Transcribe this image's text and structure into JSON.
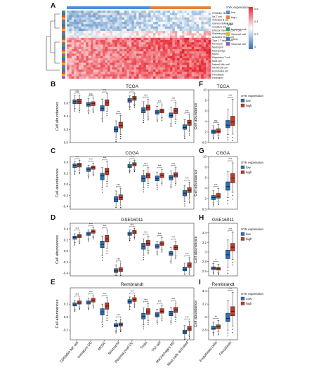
{
  "figure": {
    "panel_letters": [
      "A",
      "B",
      "C",
      "D",
      "E",
      "F",
      "G",
      "H",
      "I"
    ]
  },
  "heatmap": {
    "legend_titles": [
      "SYK expression",
      "Type"
    ],
    "expression_levels": [
      "low",
      "high"
    ],
    "type_levels": [
      "Immune cell",
      "Stromal cell",
      "Other",
      "Stromal cell"
    ],
    "colorbar_ticks": [
      "0.6",
      "0.4",
      "0.2",
      "0"
    ],
    "colors": {
      "low": "#2e6fb3",
      "high": "#c0392b",
      "cold": "#cfe2f3",
      "hot": "#e8242f",
      "white": "#ffffff"
    },
    "row_labels": [
      "CD56dim NK cell",
      "NK T cell",
      "Activated B cell",
      "Gamma delta T cell",
      "Immature DC",
      "Effector memory CD4 T cell",
      "Plasmacytoid DC",
      "Activated CD4 T cell",
      "Type 1 T helper cell",
      "Monocyte",
      "Neutrophil",
      "Macrophage",
      "MDSC",
      "Regulatory T cell",
      "Mast cell",
      "Natural killer cell",
      "Memory B cell",
      "Endothelial cell",
      "Fibroblasts",
      "Eosinophil"
    ]
  },
  "chart_data": [
    {
      "panel": "B",
      "type": "box",
      "title": "TCGA",
      "xlabel": "",
      "ylabel": "Cell abundances",
      "ylim": [
        0.0,
        0.8
      ],
      "yticks": [
        0.0,
        0.2,
        0.4,
        0.6
      ],
      "categories": [
        "CD56dim NK cell",
        "Immature DC",
        "MDSC",
        "Neutrophil",
        "Plasmacytoid DC",
        "Tregs",
        "Th2 cell",
        "Macrophages M2",
        "Mast cells activated"
      ],
      "significance": [
        "ns",
        "ns",
        "***",
        "***",
        "***",
        "***",
        "***",
        "***",
        "***"
      ],
      "series": [
        {
          "name": "low",
          "q1": [
            0.59,
            0.55,
            0.48,
            0.16,
            0.61,
            0.45,
            0.43,
            0.38,
            0.2
          ],
          "median": [
            0.62,
            0.58,
            0.52,
            0.2,
            0.64,
            0.49,
            0.46,
            0.41,
            0.23
          ],
          "q3": [
            0.65,
            0.61,
            0.56,
            0.24,
            0.67,
            0.53,
            0.49,
            0.45,
            0.27
          ],
          "min": [
            0.52,
            0.48,
            0.37,
            0.07,
            0.55,
            0.36,
            0.36,
            0.29,
            0.11
          ],
          "max": [
            0.71,
            0.67,
            0.66,
            0.33,
            0.71,
            0.62,
            0.55,
            0.54,
            0.35
          ]
        },
        {
          "name": "high",
          "q1": [
            0.59,
            0.56,
            0.56,
            0.22,
            0.64,
            0.49,
            0.45,
            0.44,
            0.26
          ],
          "median": [
            0.62,
            0.59,
            0.6,
            0.26,
            0.67,
            0.53,
            0.48,
            0.48,
            0.3
          ],
          "q3": [
            0.66,
            0.62,
            0.65,
            0.31,
            0.7,
            0.57,
            0.51,
            0.52,
            0.34
          ],
          "min": [
            0.51,
            0.5,
            0.47,
            0.12,
            0.58,
            0.4,
            0.38,
            0.35,
            0.17
          ],
          "max": [
            0.72,
            0.68,
            0.74,
            0.41,
            0.74,
            0.66,
            0.57,
            0.61,
            0.42
          ]
        }
      ]
    },
    {
      "panel": "C",
      "type": "box",
      "title": "CGGA",
      "xlabel": "",
      "ylabel": "Cell abundances",
      "ylim": [
        -0.45,
        0.5
      ],
      "yticks": [
        -0.4,
        -0.2,
        0.0,
        0.2,
        0.4
      ],
      "categories": [
        "CD56dim NK cell",
        "Immature DC",
        "MDSC",
        "Neutrophil",
        "Plasmacytoid DC",
        "Tregs",
        "Th2 cell",
        "Macrophages M2",
        "Mast cells activated"
      ],
      "significance": [
        "***",
        "***",
        "***",
        "***",
        "***",
        "***",
        "***",
        "***",
        "***"
      ],
      "series": [
        {
          "name": "low",
          "q1": [
            0.3,
            0.23,
            0.08,
            -0.32,
            0.3,
            0.05,
            0.06,
            0.08,
            -0.21
          ],
          "median": [
            0.34,
            0.27,
            0.15,
            -0.27,
            0.33,
            0.1,
            0.1,
            0.12,
            -0.16
          ],
          "q3": [
            0.37,
            0.3,
            0.2,
            -0.22,
            0.36,
            0.16,
            0.15,
            0.16,
            -0.11
          ],
          "min": [
            0.23,
            0.16,
            -0.06,
            -0.42,
            0.25,
            -0.06,
            -0.03,
            -0.01,
            -0.32
          ],
          "max": [
            0.41,
            0.34,
            0.3,
            -0.12,
            0.4,
            0.25,
            0.22,
            0.24,
            -0.02
          ]
        },
        {
          "name": "high",
          "q1": [
            0.31,
            0.27,
            0.17,
            -0.28,
            0.33,
            0.11,
            0.12,
            0.13,
            -0.15
          ],
          "median": [
            0.35,
            0.3,
            0.23,
            -0.24,
            0.36,
            0.15,
            0.16,
            0.17,
            -0.11
          ],
          "q3": [
            0.38,
            0.33,
            0.29,
            -0.19,
            0.39,
            0.2,
            0.2,
            0.21,
            -0.06
          ],
          "min": [
            0.24,
            0.2,
            0.05,
            -0.39,
            0.27,
            0.01,
            0.04,
            0.04,
            -0.27
          ],
          "max": [
            0.43,
            0.38,
            0.41,
            -0.08,
            0.43,
            0.3,
            0.27,
            0.3,
            0.04
          ]
        }
      ]
    },
    {
      "panel": "D",
      "type": "box",
      "title": "GSE16011",
      "xlabel": "",
      "ylabel": "Cell abundances",
      "ylim": [
        -0.45,
        0.5
      ],
      "yticks": [
        -0.4,
        -0.2,
        0.0,
        0.2,
        0.4
      ],
      "categories": [
        "CD56dim NK cell",
        "Immature DC",
        "MDSC",
        "Neutrophil",
        "Plasmacytoid DC",
        "Tregs",
        "Th2 cell",
        "Macrophages M2",
        "Mast cells activated"
      ],
      "significance": [
        "***",
        "***",
        "***",
        "***",
        "***",
        "***",
        "***",
        "***",
        "***"
      ],
      "series": [
        {
          "name": "low",
          "q1": [
            0.21,
            0.28,
            0.06,
            -0.39,
            0.28,
            0.03,
            0.05,
            -0.08,
            -0.36
          ],
          "median": [
            0.24,
            0.31,
            0.12,
            -0.36,
            0.31,
            0.08,
            0.08,
            -0.05,
            -0.33
          ],
          "q3": [
            0.27,
            0.34,
            0.18,
            -0.32,
            0.34,
            0.14,
            0.12,
            -0.01,
            -0.29
          ],
          "min": [
            0.15,
            0.22,
            -0.08,
            -0.44,
            0.23,
            -0.08,
            -0.02,
            -0.17,
            -0.43
          ],
          "max": [
            0.31,
            0.38,
            0.27,
            -0.25,
            0.38,
            0.22,
            0.18,
            0.06,
            -0.22
          ]
        },
        {
          "name": "high",
          "q1": [
            0.24,
            0.32,
            0.16,
            -0.37,
            0.31,
            0.1,
            0.1,
            0.02,
            -0.3
          ],
          "median": [
            0.27,
            0.35,
            0.22,
            -0.34,
            0.34,
            0.14,
            0.13,
            0.06,
            -0.26
          ],
          "q3": [
            0.3,
            0.38,
            0.28,
            -0.3,
            0.37,
            0.19,
            0.17,
            0.1,
            -0.21
          ],
          "min": [
            0.18,
            0.26,
            0.04,
            -0.42,
            0.26,
            0.01,
            0.03,
            -0.08,
            -0.4
          ],
          "max": [
            0.34,
            0.42,
            0.38,
            -0.22,
            0.41,
            0.27,
            0.24,
            0.18,
            -0.12
          ]
        }
      ]
    },
    {
      "panel": "E",
      "type": "box",
      "title": "Rembrandt",
      "xlabel": "",
      "ylabel": "Cell abundances",
      "ylim": [
        -0.35,
        0.45
      ],
      "yticks": [
        -0.2,
        0.0,
        0.2
      ],
      "categories": [
        "CD56dim NK cell",
        "Immature DC",
        "MDSC",
        "Neutrophil",
        "Plasmacytoid DC",
        "Tregs",
        "Th2 cell",
        "Macrophages M2",
        "Mast cells activated"
      ],
      "significance": [
        "***",
        "***",
        "***",
        "***",
        "***",
        "***",
        "***",
        "***",
        "***"
      ],
      "series": [
        {
          "name": "low",
          "q1": [
            0.17,
            0.2,
            0.03,
            -0.15,
            0.21,
            -0.03,
            0.0,
            0.02,
            -0.26
          ],
          "median": [
            0.19,
            0.22,
            0.08,
            -0.13,
            0.24,
            0.01,
            0.03,
            0.05,
            -0.23
          ],
          "q3": [
            0.22,
            0.25,
            0.13,
            -0.1,
            0.27,
            0.06,
            0.07,
            0.09,
            -0.2
          ],
          "min": [
            0.12,
            0.15,
            -0.08,
            -0.21,
            0.16,
            -0.12,
            -0.06,
            -0.06,
            -0.32
          ],
          "max": [
            0.26,
            0.29,
            0.2,
            -0.05,
            0.31,
            0.14,
            0.12,
            0.15,
            -0.13
          ]
        },
        {
          "name": "high",
          "q1": [
            0.2,
            0.23,
            0.12,
            -0.14,
            0.24,
            0.04,
            0.06,
            0.07,
            -0.21
          ],
          "median": [
            0.22,
            0.26,
            0.17,
            -0.12,
            0.27,
            0.08,
            0.09,
            0.11,
            -0.18
          ],
          "q3": [
            0.25,
            0.29,
            0.22,
            -0.09,
            0.3,
            0.13,
            0.13,
            0.15,
            -0.14
          ],
          "min": [
            0.15,
            0.18,
            0.02,
            -0.19,
            0.19,
            -0.05,
            0.0,
            -0.01,
            -0.28
          ],
          "max": [
            0.29,
            0.33,
            0.3,
            -0.03,
            0.34,
            0.21,
            0.18,
            0.22,
            -0.06
          ]
        }
      ]
    },
    {
      "panel": "F",
      "type": "box",
      "title": "TCGA",
      "xlabel": "",
      "ylabel": "Cell abundance",
      "ylim": [
        0,
        10
      ],
      "yticks": [
        0,
        2,
        4,
        6,
        8,
        10
      ],
      "legend_title": "SYK expression",
      "categories": [
        "Endothelial cells",
        "Fibroblasts"
      ],
      "significance": [
        "ns",
        "***"
      ],
      "series": [
        {
          "name": "low",
          "q1": [
            1.7,
            2.8
          ],
          "median": [
            2.0,
            3.3
          ],
          "q3": [
            2.4,
            4.2
          ],
          "min": [
            1.2,
            1.5
          ],
          "max": [
            3.2,
            6.2
          ]
        },
        {
          "name": "high",
          "q1": [
            1.8,
            3.2
          ],
          "median": [
            2.1,
            3.9
          ],
          "q3": [
            2.6,
            5.0
          ],
          "min": [
            1.3,
            1.6
          ],
          "max": [
            3.4,
            8.2
          ]
        }
      ]
    },
    {
      "panel": "G",
      "type": "box",
      "title": "CGGA",
      "xlabel": "",
      "ylabel": "Cell abundance",
      "ylim": [
        0,
        10
      ],
      "yticks": [
        0,
        2,
        4,
        6,
        8,
        10
      ],
      "legend_title": "SYK expression",
      "categories": [
        "Endothelial cells",
        "Fibroblasts"
      ],
      "significance": [
        "***",
        "***"
      ],
      "series": [
        {
          "name": "low",
          "q1": [
            1.8,
            3.6
          ],
          "median": [
            2.2,
            4.3
          ],
          "q3": [
            2.6,
            5.2
          ],
          "min": [
            1.2,
            2.2
          ],
          "max": [
            3.5,
            7.2
          ]
        },
        {
          "name": "high",
          "q1": [
            2.1,
            5.0
          ],
          "median": [
            2.5,
            5.9
          ],
          "q3": [
            3.0,
            6.8
          ],
          "min": [
            1.5,
            3.2
          ],
          "max": [
            3.9,
            8.8
          ]
        }
      ]
    },
    {
      "panel": "H",
      "type": "box",
      "title": "GSE16011",
      "xlabel": "",
      "ylabel": "Cell abundance",
      "ylim": [
        2.5,
        3.6
      ],
      "yticks": [
        2.6,
        2.8,
        3.0,
        3.2,
        3.4
      ],
      "legend_title": "SYK expression",
      "categories": [
        "Endothelial cells",
        "Fibroblasts"
      ],
      "significance": [
        "*",
        "***"
      ],
      "series": [
        {
          "name": "low",
          "q1": [
            2.63,
            2.86
          ],
          "median": [
            2.66,
            2.94
          ],
          "q3": [
            2.69,
            3.04
          ],
          "min": [
            2.58,
            2.68
          ],
          "max": [
            2.76,
            3.25
          ]
        },
        {
          "name": "high",
          "q1": [
            2.62,
            3.02
          ],
          "median": [
            2.65,
            3.1
          ],
          "q3": [
            2.68,
            3.18
          ],
          "min": [
            2.57,
            2.84
          ],
          "max": [
            2.74,
            3.4
          ]
        }
      ]
    },
    {
      "panel": "I",
      "type": "box",
      "title": "Rembrandt",
      "xlabel": "",
      "ylabel": "Cell abundance",
      "ylim": [
        2.65,
        3.45
      ],
      "yticks": [
        2.8,
        3.0,
        3.2,
        3.4
      ],
      "legend_title": "SYK expression",
      "categories": [
        "Endothelial cells",
        "Fibroblasts"
      ],
      "significance": [
        "**",
        "***"
      ],
      "series": [
        {
          "name": "Low",
          "q1": [
            2.81,
            2.93
          ],
          "median": [
            2.83,
            2.98
          ],
          "q3": [
            2.86,
            3.06
          ],
          "min": [
            2.76,
            2.8
          ],
          "max": [
            2.92,
            3.25
          ]
        },
        {
          "name": "high",
          "q1": [
            2.82,
            3.02
          ],
          "median": [
            2.85,
            3.09
          ],
          "q3": [
            2.88,
            3.16
          ],
          "min": [
            2.77,
            2.86
          ],
          "max": [
            2.95,
            3.38
          ]
        }
      ]
    }
  ]
}
